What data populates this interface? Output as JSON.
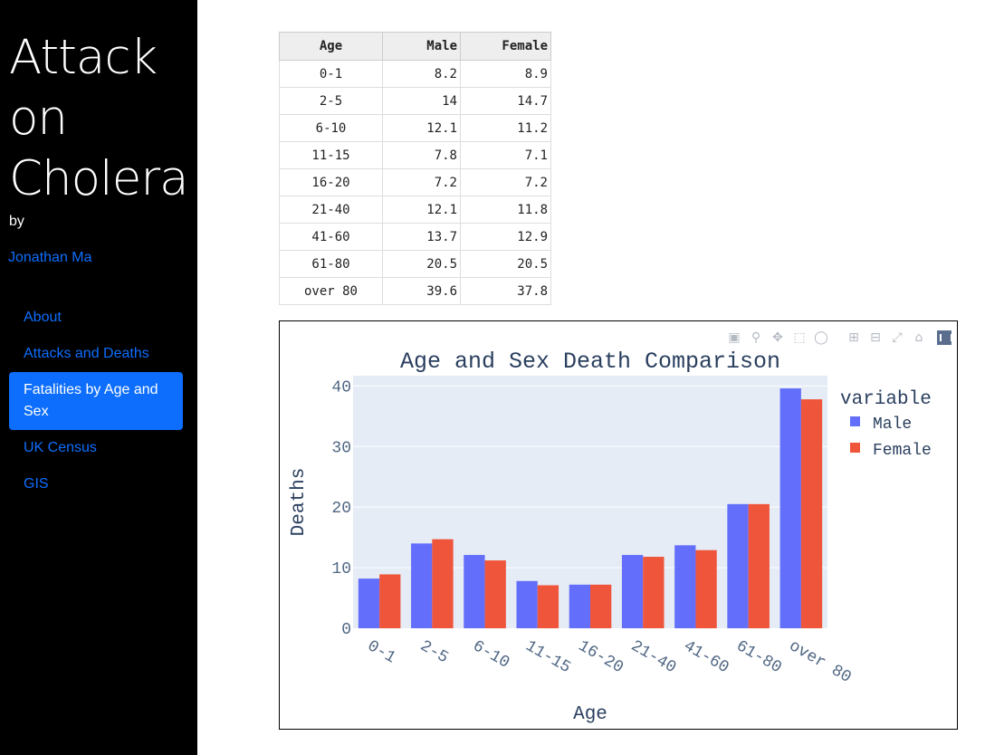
{
  "sidebar": {
    "title": "Attack on Cholera",
    "by_label": "by",
    "author": "Jonathan Ma",
    "nav": [
      {
        "label": "About",
        "active": false
      },
      {
        "label": "Attacks and Deaths",
        "active": false
      },
      {
        "label": "Fatalities by Age and Sex",
        "active": true
      },
      {
        "label": "UK Census",
        "active": false
      },
      {
        "label": "GIS",
        "active": false
      }
    ]
  },
  "table": {
    "headers": [
      "Age",
      "Male",
      "Female"
    ],
    "rows": [
      [
        "0-1",
        "8.2",
        "8.9"
      ],
      [
        "2-5",
        "14",
        "14.7"
      ],
      [
        "6-10",
        "12.1",
        "11.2"
      ],
      [
        "11-15",
        "7.8",
        "7.1"
      ],
      [
        "16-20",
        "7.2",
        "7.2"
      ],
      [
        "21-40",
        "12.1",
        "11.8"
      ],
      [
        "41-60",
        "13.7",
        "12.9"
      ],
      [
        "61-80",
        "20.5",
        "20.5"
      ],
      [
        "over 80",
        "39.6",
        "37.8"
      ]
    ]
  },
  "modebar": {
    "icons": [
      "camera-icon",
      "zoom-icon",
      "pan-icon",
      "box-select-icon",
      "lasso-icon",
      "zoom-in-icon",
      "zoom-out-icon",
      "autoscale-icon",
      "reset-axes-icon",
      "plotly-logo-icon"
    ]
  },
  "chart_data": {
    "type": "bar",
    "title": "Age and Sex Death Comparison",
    "xlabel": "Age",
    "ylabel": "Deaths",
    "categories": [
      "0-1",
      "2-5",
      "6-10",
      "11-15",
      "16-20",
      "21-40",
      "41-60",
      "61-80",
      "over 80"
    ],
    "series": [
      {
        "name": "Male",
        "color": "#636efa",
        "values": [
          8.2,
          14,
          12.1,
          7.8,
          7.2,
          12.1,
          13.7,
          20.5,
          39.6
        ]
      },
      {
        "name": "Female",
        "color": "#ef553b",
        "values": [
          8.9,
          14.7,
          11.2,
          7.1,
          7.2,
          11.8,
          12.9,
          20.5,
          37.8
        ]
      }
    ],
    "yticks": [
      0,
      10,
      20,
      30,
      40
    ],
    "ylim": [
      0,
      41.7
    ],
    "legend_title": "variable",
    "legend_position": "right",
    "grid": true,
    "plot_bg": "#e5ecf6"
  }
}
